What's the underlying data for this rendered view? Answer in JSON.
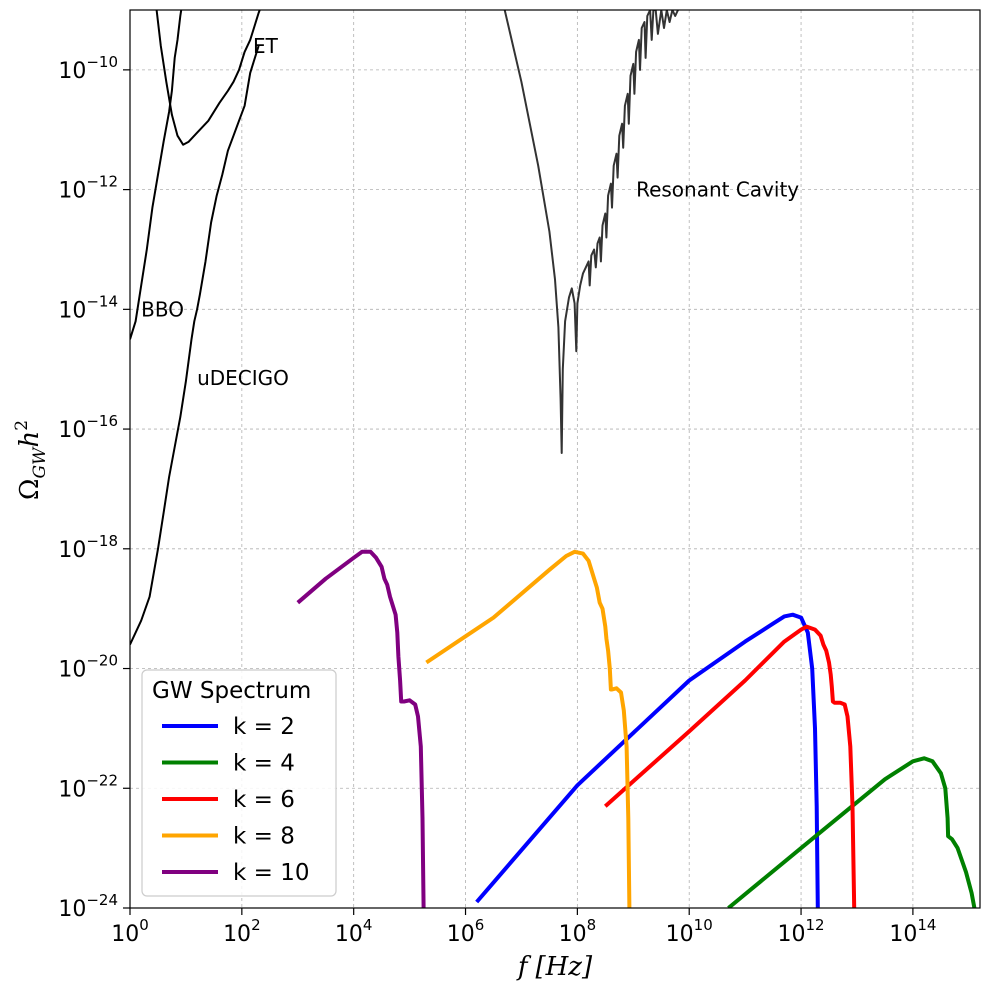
{
  "chart_data": {
    "type": "line",
    "xscale": "log",
    "yscale": "log",
    "xlim_exp": [
      0,
      15.2
    ],
    "ylim_exp": [
      -24,
      -9
    ],
    "xlabel_main": "f",
    "xlabel_unit": "[Hz]",
    "ylabel_main": "Ω",
    "ylabel_sub": "GW",
    "ylabel_h": "h",
    "ylabel_pow": "2",
    "x_ticks": [
      {
        "base": "10",
        "exp": "0",
        "value": 0
      },
      {
        "base": "10",
        "exp": "2",
        "value": 2
      },
      {
        "base": "10",
        "exp": "4",
        "value": 4
      },
      {
        "base": "10",
        "exp": "6",
        "value": 6
      },
      {
        "base": "10",
        "exp": "8",
        "value": 8
      },
      {
        "base": "10",
        "exp": "10",
        "value": 10
      },
      {
        "base": "10",
        "exp": "12",
        "value": 12
      },
      {
        "base": "10",
        "exp": "14",
        "value": 14
      }
    ],
    "y_ticks": [
      {
        "base": "10",
        "exp": "−10",
        "value": -10
      },
      {
        "base": "10",
        "exp": "−12",
        "value": -12
      },
      {
        "base": "10",
        "exp": "−14",
        "value": -14
      },
      {
        "base": "10",
        "exp": "−16",
        "value": -16
      },
      {
        "base": "10",
        "exp": "−18",
        "value": -18
      },
      {
        "base": "10",
        "exp": "−20",
        "value": -20
      },
      {
        "base": "10",
        "exp": "−22",
        "value": -22
      },
      {
        "base": "10",
        "exp": "−24",
        "value": -24
      }
    ],
    "grid": true,
    "legend": {
      "title": "GW Spectrum",
      "placement": "lower-left",
      "entries": [
        "k = 2",
        "k = 4",
        "k = 6",
        "k = 8",
        "k = 10"
      ]
    },
    "series": [
      {
        "name": "k = 2",
        "color": "#0000ff",
        "points": [
          [
            6.2,
            -23.9
          ],
          [
            8,
            -21.95
          ],
          [
            10,
            -20.2
          ],
          [
            11,
            -19.55
          ],
          [
            11.5,
            -19.25
          ],
          [
            11.7,
            -19.13
          ],
          [
            11.85,
            -19.1
          ],
          [
            12.0,
            -19.15
          ],
          [
            12.12,
            -19.4
          ],
          [
            12.2,
            -20.0
          ],
          [
            12.25,
            -21.0
          ],
          [
            12.28,
            -22.3
          ],
          [
            12.3,
            -24.0
          ]
        ]
      },
      {
        "name": "k = 4",
        "color": "#008000",
        "points": [
          [
            10.7,
            -24.0
          ],
          [
            12,
            -23.0
          ],
          [
            13.5,
            -21.85
          ],
          [
            14,
            -21.55
          ],
          [
            14.2,
            -21.5
          ],
          [
            14.35,
            -21.55
          ],
          [
            14.5,
            -21.75
          ],
          [
            14.58,
            -22.0
          ],
          [
            14.62,
            -22.5
          ],
          [
            14.63,
            -22.8
          ],
          [
            14.7,
            -22.85
          ],
          [
            14.8,
            -23.0
          ],
          [
            14.95,
            -23.4
          ],
          [
            15.05,
            -23.75
          ],
          [
            15.1,
            -24.0
          ]
        ]
      },
      {
        "name": "k = 6",
        "color": "#ff0000",
        "points": [
          [
            8.5,
            -22.3
          ],
          [
            10,
            -21.05
          ],
          [
            11,
            -20.2
          ],
          [
            11.7,
            -19.55
          ],
          [
            12.0,
            -19.35
          ],
          [
            12.1,
            -19.3
          ],
          [
            12.25,
            -19.35
          ],
          [
            12.35,
            -19.45
          ],
          [
            12.4,
            -19.6
          ],
          [
            12.45,
            -19.7
          ],
          [
            12.5,
            -19.9
          ],
          [
            12.53,
            -20.1
          ],
          [
            12.55,
            -20.3
          ],
          [
            12.57,
            -20.55
          ],
          [
            12.6,
            -20.57
          ],
          [
            12.7,
            -20.57
          ],
          [
            12.78,
            -20.6
          ],
          [
            12.83,
            -20.8
          ],
          [
            12.88,
            -21.3
          ],
          [
            12.92,
            -22.3
          ],
          [
            12.95,
            -24.0
          ]
        ]
      },
      {
        "name": "k = 8",
        "color": "#ffa500",
        "points": [
          [
            5.3,
            -19.9
          ],
          [
            6.5,
            -19.15
          ],
          [
            7.5,
            -18.35
          ],
          [
            7.8,
            -18.12
          ],
          [
            7.95,
            -18.05
          ],
          [
            8.1,
            -18.08
          ],
          [
            8.2,
            -18.2
          ],
          [
            8.3,
            -18.5
          ],
          [
            8.35,
            -18.65
          ],
          [
            8.4,
            -18.9
          ],
          [
            8.45,
            -19.0
          ],
          [
            8.5,
            -19.3
          ],
          [
            8.52,
            -19.5
          ],
          [
            8.55,
            -19.7
          ],
          [
            8.58,
            -20.0
          ],
          [
            8.6,
            -20.35
          ],
          [
            8.62,
            -20.35
          ],
          [
            8.7,
            -20.33
          ],
          [
            8.78,
            -20.4
          ],
          [
            8.83,
            -20.7
          ],
          [
            8.88,
            -21.3
          ],
          [
            8.91,
            -22.5
          ],
          [
            8.93,
            -24.0
          ]
        ]
      },
      {
        "name": "k = 10",
        "color": "#800080",
        "points": [
          [
            3.0,
            -18.9
          ],
          [
            3.5,
            -18.5
          ],
          [
            4.0,
            -18.15
          ],
          [
            4.15,
            -18.05
          ],
          [
            4.3,
            -18.05
          ],
          [
            4.4,
            -18.15
          ],
          [
            4.5,
            -18.3
          ],
          [
            4.55,
            -18.5
          ],
          [
            4.6,
            -18.6
          ],
          [
            4.65,
            -18.8
          ],
          [
            4.7,
            -18.95
          ],
          [
            4.75,
            -19.1
          ],
          [
            4.78,
            -19.4
          ],
          [
            4.8,
            -19.8
          ],
          [
            4.83,
            -20.2
          ],
          [
            4.85,
            -20.55
          ],
          [
            4.9,
            -20.55
          ],
          [
            5.0,
            -20.53
          ],
          [
            5.1,
            -20.6
          ],
          [
            5.15,
            -20.8
          ],
          [
            5.2,
            -21.3
          ],
          [
            5.23,
            -22.5
          ],
          [
            5.25,
            -24.0
          ]
        ]
      }
    ],
    "curves": [
      {
        "name": "BBO",
        "label": "BBO",
        "label_pos": [
          0.2,
          -14.0
        ],
        "color": "#000000",
        "points": [
          [
            0.0,
            -19.6
          ],
          [
            0.2,
            -19.2
          ],
          [
            0.35,
            -18.8
          ],
          [
            0.5,
            -18.0
          ],
          [
            0.6,
            -17.4
          ],
          [
            0.7,
            -16.8
          ],
          [
            0.8,
            -16.3
          ],
          [
            0.9,
            -15.8
          ],
          [
            1.0,
            -15.2
          ],
          [
            1.1,
            -14.5
          ],
          [
            1.15,
            -14.2
          ],
          [
            1.2,
            -14.0
          ],
          [
            1.25,
            -13.75
          ],
          [
            1.35,
            -13.2
          ],
          [
            1.45,
            -12.55
          ],
          [
            1.55,
            -12.1
          ],
          [
            1.65,
            -11.75
          ],
          [
            1.75,
            -11.35
          ],
          [
            1.85,
            -11.1
          ],
          [
            1.95,
            -10.85
          ],
          [
            2.05,
            -10.6
          ],
          [
            2.15,
            -10.05
          ],
          [
            2.25,
            -9.75
          ],
          [
            2.3,
            -9.6
          ]
        ]
      },
      {
        "name": "uDECIGO",
        "label": "uDECIGO",
        "label_pos": [
          1.2,
          -15.15
        ],
        "color": "#000000",
        "points": [
          [
            0.0,
            -14.5
          ],
          [
            0.1,
            -14.2
          ],
          [
            0.2,
            -13.6
          ],
          [
            0.3,
            -13.0
          ],
          [
            0.4,
            -12.3
          ],
          [
            0.5,
            -11.75
          ],
          [
            0.6,
            -11.2
          ],
          [
            0.7,
            -10.7
          ],
          [
            0.75,
            -10.35
          ],
          [
            0.8,
            -9.8
          ],
          [
            0.85,
            -9.5
          ],
          [
            0.9,
            -9.1
          ],
          [
            0.95,
            -8.8
          ]
        ]
      },
      {
        "name": "ET",
        "label": "ET",
        "label_pos": [
          2.2,
          -9.6
        ],
        "color": "#000000",
        "points": [
          [
            0.45,
            -8.8
          ],
          [
            0.55,
            -9.6
          ],
          [
            0.65,
            -10.2
          ],
          [
            0.75,
            -10.75
          ],
          [
            0.85,
            -11.1
          ],
          [
            0.95,
            -11.25
          ],
          [
            1.05,
            -11.2
          ],
          [
            1.2,
            -11.05
          ],
          [
            1.4,
            -10.85
          ],
          [
            1.6,
            -10.55
          ],
          [
            1.75,
            -10.35
          ],
          [
            1.85,
            -10.2
          ],
          [
            1.95,
            -10.0
          ],
          [
            2.05,
            -9.7
          ],
          [
            2.15,
            -9.5
          ],
          [
            2.2,
            -9.35
          ],
          [
            2.3,
            -9.05
          ],
          [
            2.4,
            -8.8
          ]
        ]
      },
      {
        "name": "Resonant Cavity",
        "label": "Resonant Cavity",
        "label_pos": [
          9.05,
          -12.0
        ],
        "color": "#333333",
        "points": [
          [
            6.7,
            -9.0
          ],
          [
            7.0,
            -10.2
          ],
          [
            7.3,
            -11.6
          ],
          [
            7.5,
            -12.7
          ],
          [
            7.6,
            -13.5
          ],
          [
            7.66,
            -14.3
          ],
          [
            7.7,
            -15.5
          ],
          [
            7.72,
            -16.4
          ],
          [
            7.74,
            -15.0
          ],
          [
            7.78,
            -14.2
          ],
          [
            7.85,
            -13.8
          ],
          [
            7.9,
            -13.65
          ],
          [
            7.95,
            -13.9
          ],
          [
            7.98,
            -14.7
          ],
          [
            8.0,
            -13.9
          ],
          [
            8.05,
            -13.6
          ],
          [
            8.1,
            -13.4
          ],
          [
            8.15,
            -13.3
          ],
          [
            8.2,
            -13.2
          ],
          [
            8.22,
            -13.6
          ],
          [
            8.25,
            -13.1
          ],
          [
            8.3,
            -13.0
          ],
          [
            8.33,
            -13.3
          ],
          [
            8.36,
            -12.9
          ],
          [
            8.4,
            -12.8
          ],
          [
            8.42,
            -13.2
          ],
          [
            8.45,
            -12.6
          ],
          [
            8.5,
            -12.4
          ],
          [
            8.52,
            -12.8
          ],
          [
            8.55,
            -12.1
          ],
          [
            8.6,
            -11.9
          ],
          [
            8.62,
            -12.3
          ],
          [
            8.65,
            -11.6
          ],
          [
            8.7,
            -11.4
          ],
          [
            8.72,
            -11.8
          ],
          [
            8.75,
            -11.1
          ],
          [
            8.8,
            -10.9
          ],
          [
            8.82,
            -11.3
          ],
          [
            8.85,
            -10.6
          ],
          [
            8.9,
            -10.4
          ],
          [
            8.92,
            -10.9
          ],
          [
            8.95,
            -10.1
          ],
          [
            9.0,
            -9.9
          ],
          [
            9.02,
            -10.4
          ],
          [
            9.05,
            -9.7
          ],
          [
            9.1,
            -9.5
          ],
          [
            9.12,
            -10.0
          ],
          [
            9.15,
            -9.3
          ],
          [
            9.2,
            -9.2
          ],
          [
            9.22,
            -9.8
          ],
          [
            9.25,
            -9.1
          ],
          [
            9.3,
            -9.0
          ],
          [
            9.33,
            -9.5
          ],
          [
            9.36,
            -9.0
          ],
          [
            9.4,
            -9.0
          ],
          [
            9.44,
            -9.4
          ],
          [
            9.5,
            -9.0
          ],
          [
            9.55,
            -9.3
          ],
          [
            9.6,
            -9.0
          ],
          [
            9.65,
            -9.2
          ],
          [
            9.7,
            -9.0
          ],
          [
            9.75,
            -9.1
          ],
          [
            9.8,
            -9.0
          ]
        ]
      }
    ]
  }
}
